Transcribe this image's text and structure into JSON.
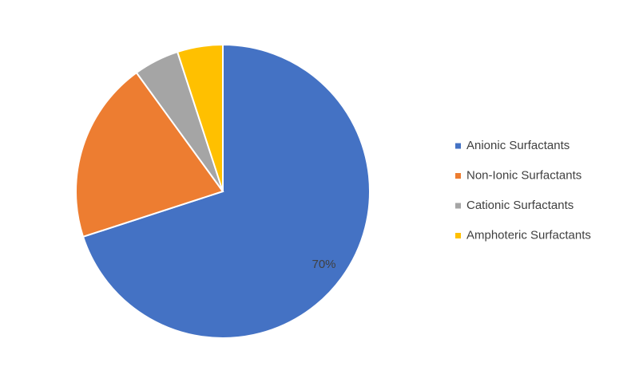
{
  "chart_data": {
    "type": "pie",
    "categories": [
      "Anionic Surfactants",
      "Non-Ionic Surfactants",
      "Cationic Surfactants",
      "Amphoteric Surfactants"
    ],
    "values": [
      70,
      20,
      5,
      5
    ],
    "value_labels": [
      "70%",
      null,
      null,
      null
    ],
    "colors": [
      "#4472c4",
      "#ed7d31",
      "#a5a5a5",
      "#ffc000"
    ],
    "legend": "right"
  }
}
